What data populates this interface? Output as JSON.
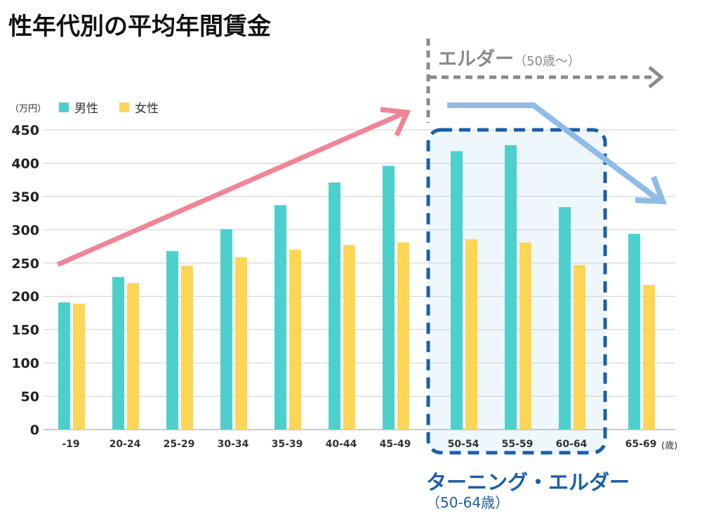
{
  "title": "性年代別の平均年間賃金",
  "unit_label": "（万円）",
  "age_unit": "(歳)",
  "annotations": {
    "elder": "エルダー",
    "elder_sub": "（50歳〜）",
    "turning": "ターニング・エルダー",
    "turning_sub": "（50-64歳）"
  },
  "colors": {
    "male": "#4dd0cc",
    "female": "#ffd555",
    "rise_arrow": "#f08598",
    "fall_arrow": "#8dbce9",
    "elder_line": "#8a8a8a",
    "turning_box": "#1a5fa8",
    "turning_fill": "#eef7fc"
  },
  "chart_data": {
    "type": "bar",
    "title": "性年代別の平均年間賃金",
    "ylabel": "（万円）",
    "xlabel": "(歳)",
    "ylim": [
      0,
      450
    ],
    "yticks": [
      0,
      50,
      100,
      150,
      200,
      250,
      300,
      350,
      400,
      450
    ],
    "grid": true,
    "legend_position": "top-left",
    "categories": [
      "-19",
      "20-24",
      "25-29",
      "30-34",
      "35-39",
      "40-44",
      "45-49",
      "50-54",
      "55-59",
      "60-64",
      "65-69"
    ],
    "series": [
      {
        "name": "男性",
        "values": [
          191,
          229,
          268,
          301,
          337,
          371,
          396,
          418,
          427,
          334,
          294
        ]
      },
      {
        "name": "女性",
        "values": [
          189,
          220,
          246,
          259,
          270,
          277,
          281,
          286,
          281,
          247,
          217
        ]
      }
    ]
  }
}
